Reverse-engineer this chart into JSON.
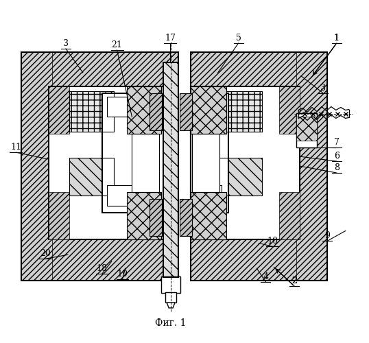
{
  "title": "Фиг. 1",
  "background_color": "#ffffff",
  "line_color": "#000000",
  "figsize": [
    5.38,
    5.0
  ],
  "dpi": 100
}
